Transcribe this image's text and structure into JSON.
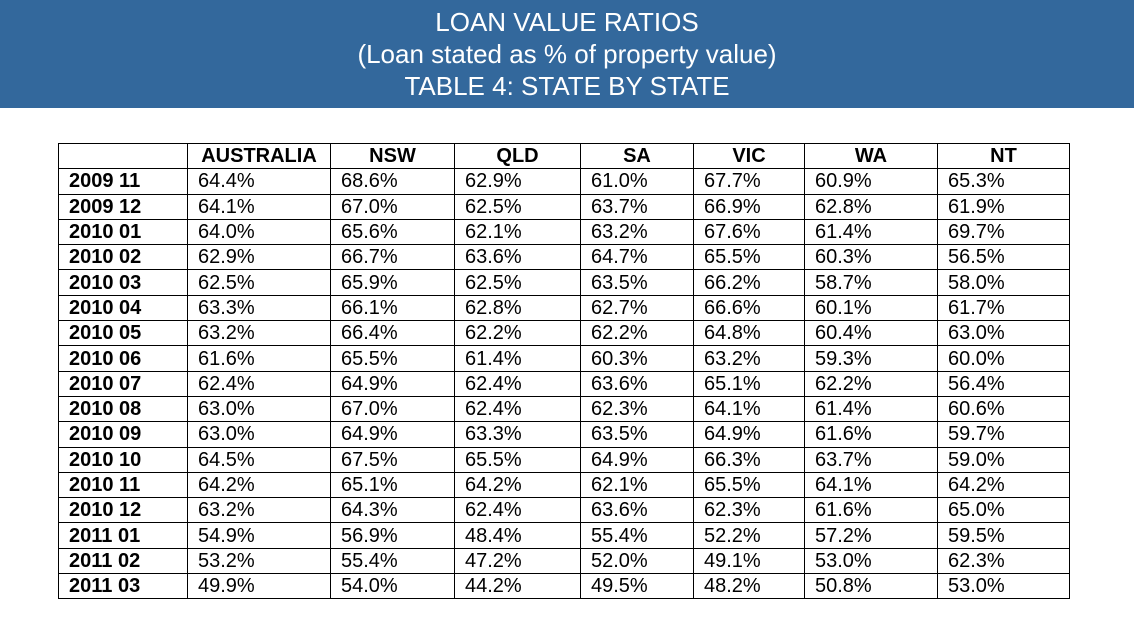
{
  "header": {
    "title_line1": "LOAN VALUE RATIOS",
    "title_line2": "(Loan stated as % of property value)",
    "title_line3": "TABLE 4: STATE BY STATE"
  },
  "colors": {
    "banner_bg": "#33689c",
    "banner_text": "#ffffff"
  },
  "table": {
    "corner": "",
    "columns": [
      "AUSTRALIA",
      "NSW",
      "QLD",
      "SA",
      "VIC",
      "WA",
      "NT"
    ],
    "rows": [
      {
        "label": "2009 11",
        "values": [
          "64.4%",
          "68.6%",
          "62.9%",
          "61.0%",
          "67.7%",
          "60.9%",
          "65.3%"
        ]
      },
      {
        "label": "2009 12",
        "values": [
          "64.1%",
          "67.0%",
          "62.5%",
          "63.7%",
          "66.9%",
          "62.8%",
          "61.9%"
        ]
      },
      {
        "label": "2010 01",
        "values": [
          "64.0%",
          "65.6%",
          "62.1%",
          "63.2%",
          "67.6%",
          "61.4%",
          "69.7%"
        ]
      },
      {
        "label": "2010 02",
        "values": [
          "62.9%",
          "66.7%",
          "63.6%",
          "64.7%",
          "65.5%",
          "60.3%",
          "56.5%"
        ]
      },
      {
        "label": "2010 03",
        "values": [
          "62.5%",
          "65.9%",
          "62.5%",
          "63.5%",
          "66.2%",
          "58.7%",
          "58.0%"
        ]
      },
      {
        "label": "2010 04",
        "values": [
          "63.3%",
          "66.1%",
          "62.8%",
          "62.7%",
          "66.6%",
          "60.1%",
          "61.7%"
        ]
      },
      {
        "label": "2010 05",
        "values": [
          "63.2%",
          "66.4%",
          "62.2%",
          "62.2%",
          "64.8%",
          "60.4%",
          "63.0%"
        ]
      },
      {
        "label": "2010 06",
        "values": [
          "61.6%",
          "65.5%",
          "61.4%",
          "60.3%",
          "63.2%",
          "59.3%",
          "60.0%"
        ]
      },
      {
        "label": "2010 07",
        "values": [
          "62.4%",
          "64.9%",
          "62.4%",
          "63.6%",
          "65.1%",
          "62.2%",
          "56.4%"
        ]
      },
      {
        "label": "2010 08",
        "values": [
          "63.0%",
          "67.0%",
          "62.4%",
          "62.3%",
          "64.1%",
          "61.4%",
          "60.6%"
        ]
      },
      {
        "label": "2010 09",
        "values": [
          "63.0%",
          "64.9%",
          "63.3%",
          "63.5%",
          "64.9%",
          "61.6%",
          "59.7%"
        ]
      },
      {
        "label": "2010 10",
        "values": [
          "64.5%",
          "67.5%",
          "65.5%",
          "64.9%",
          "66.3%",
          "63.7%",
          "59.0%"
        ]
      },
      {
        "label": "2010 11",
        "values": [
          "64.2%",
          "65.1%",
          "64.2%",
          "62.1%",
          "65.5%",
          "64.1%",
          "64.2%"
        ]
      },
      {
        "label": "2010 12",
        "values": [
          "63.2%",
          "64.3%",
          "62.4%",
          "63.6%",
          "62.3%",
          "61.6%",
          "65.0%"
        ]
      },
      {
        "label": "2011 01",
        "values": [
          "54.9%",
          "56.9%",
          "48.4%",
          "55.4%",
          "52.2%",
          "57.2%",
          "59.5%"
        ]
      },
      {
        "label": "2011 02",
        "values": [
          "53.2%",
          "55.4%",
          "47.2%",
          "52.0%",
          "49.1%",
          "53.0%",
          "62.3%"
        ]
      },
      {
        "label": "2011 03",
        "values": [
          "49.9%",
          "54.0%",
          "44.2%",
          "49.5%",
          "48.2%",
          "50.8%",
          "53.0%"
        ]
      }
    ]
  }
}
